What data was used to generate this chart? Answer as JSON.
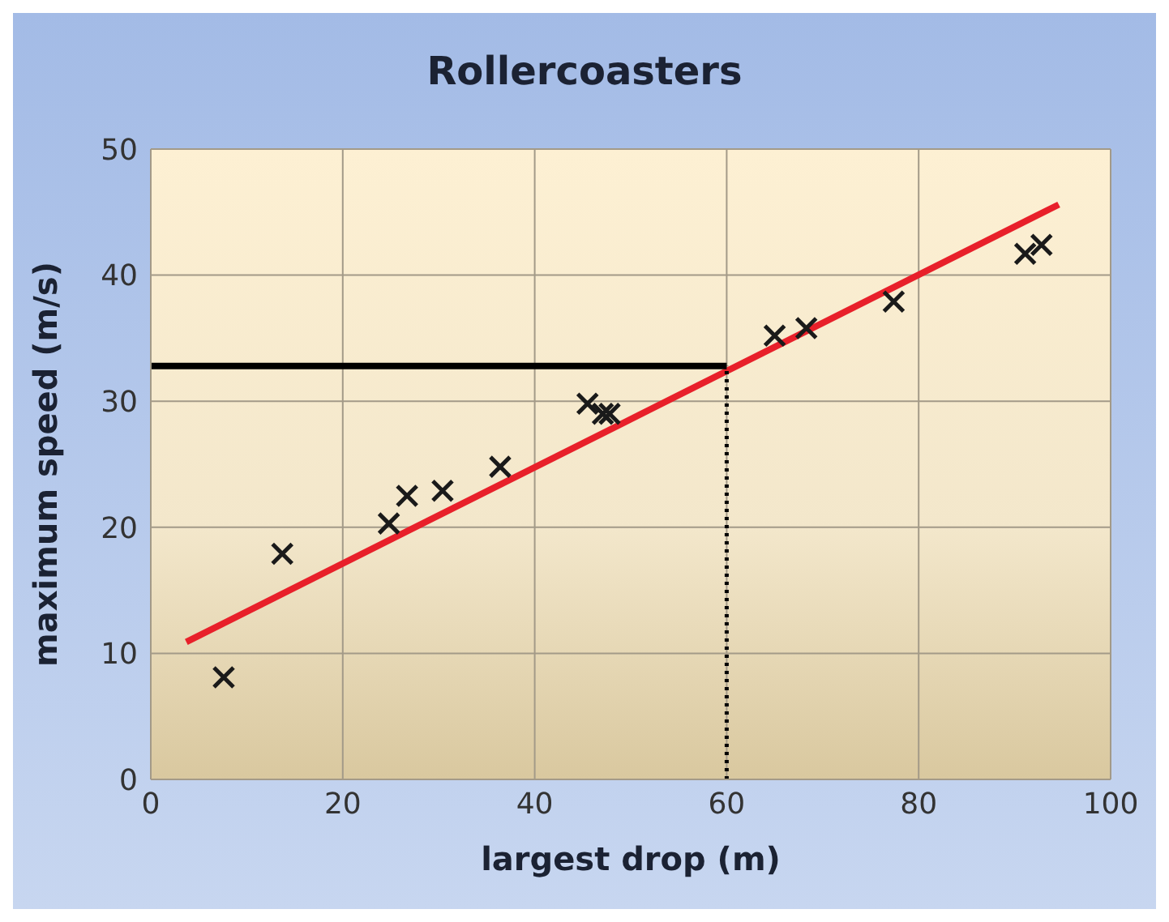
{
  "chart_data": {
    "type": "scatter",
    "title": "Rollercoasters",
    "xlabel": "largest drop (m)",
    "ylabel": "maximum speed (m/s)",
    "xlim": [
      0,
      100
    ],
    "xticks": [
      0,
      20,
      40,
      60,
      80,
      100
    ],
    "ylim": [
      0,
      50
    ],
    "yticks": [
      0,
      10,
      20,
      30,
      40,
      50
    ],
    "grid": true,
    "marker": "cross",
    "series": [
      {
        "color": "#1a1a1a",
        "x": [
          7.6,
          13.7,
          24.8,
          26.7,
          30.4,
          36.4,
          45.5,
          47.1,
          47.8,
          65.0,
          68.3,
          77.4,
          91.1,
          92.8
        ],
        "values": [
          8.1,
          17.9,
          20.3,
          22.5,
          22.9,
          24.8,
          29.8,
          29.0,
          29.0,
          35.2,
          35.8,
          37.9,
          41.7,
          42.4
        ]
      },
      {
        "type": "line",
        "color": "#e8202a",
        "x": [
          3.7,
          94.6
        ],
        "values": [
          10.9,
          45.6
        ],
        "line_style": "solid",
        "marker": "none"
      },
      {
        "type": "line",
        "color": "#000000",
        "x": [
          0,
          60
        ],
        "values": [
          32.8,
          32.8
        ],
        "line_style": "solid",
        "marker": "none"
      },
      {
        "type": "line",
        "color": "#000000",
        "x": [
          60,
          60
        ],
        "values": [
          0,
          32.8
        ],
        "line_style": "dotted",
        "marker": "none"
      }
    ]
  }
}
